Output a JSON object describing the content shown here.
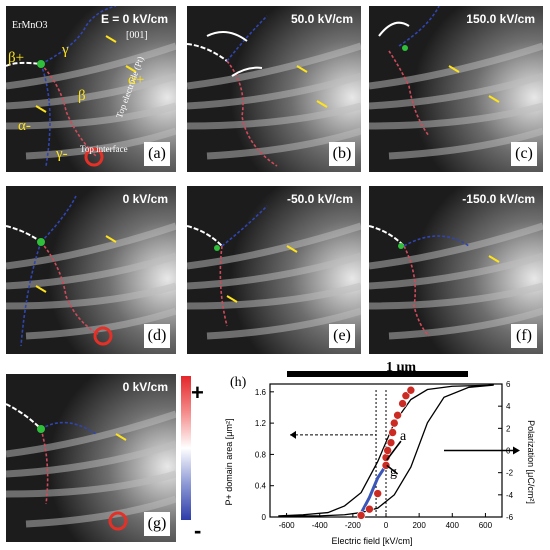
{
  "panels": [
    {
      "id": "a",
      "label": "(a)",
      "field": "E = 0 kV/cm",
      "extra": {
        "material": "ErMnO3",
        "direction": "[001]",
        "electrode": "Top electrode (Pt)",
        "interface": "Top interface",
        "greek": [
          "β+",
          "γ",
          "β",
          "α+",
          "α-",
          "γ-"
        ]
      }
    },
    {
      "id": "b",
      "label": "(b)",
      "field": "50.0 kV/cm"
    },
    {
      "id": "c",
      "label": "(c)",
      "field": "150.0 kV/cm"
    },
    {
      "id": "d",
      "label": "(d)",
      "field": "0 kV/cm"
    },
    {
      "id": "e",
      "label": "(e)",
      "field": "-50.0 kV/cm"
    },
    {
      "id": "f",
      "label": "(f)",
      "field": "-150.0 kV/cm"
    },
    {
      "id": "g",
      "label": "(g)",
      "field": "0 kV/cm"
    }
  ],
  "scale_bar": "1 μm",
  "colorbar": {
    "plus": "+",
    "minus": "-",
    "top_color": "#e4262a",
    "mid_color": "#ffffff",
    "bottom_color": "#2d3ca8"
  },
  "chart_data": {
    "type": "line",
    "panel_label": "(h)",
    "xlabel": "Electric field [kV/cm]",
    "ylabel_left": "P+ domain area [μm²]",
    "ylabel_right": "Polarization [μC/cm²]",
    "x_ticks": [
      -600,
      -400,
      -200,
      0,
      200,
      400,
      600
    ],
    "y_left_ticks": [
      0,
      0.4,
      0.8,
      1.2,
      1.6
    ],
    "y_right_ticks": [
      -6,
      -4,
      -2,
      0,
      2,
      4,
      6
    ],
    "xlim": [
      -700,
      700
    ],
    "ylim_left": [
      0,
      1.7
    ],
    "ylim_right": [
      -6,
      6
    ],
    "series": [
      {
        "name": "hysteresis",
        "color": "#000000",
        "style": "solid",
        "x": [
          -650,
          -500,
          -350,
          -250,
          -150,
          -50,
          50,
          150,
          250,
          400,
          650,
          650,
          500,
          350,
          250,
          150,
          50,
          -50,
          -150,
          -250,
          -400,
          -650
        ],
        "y": [
          -5.9,
          -5.8,
          -5.6,
          -5,
          -3.8,
          -1,
          2.5,
          4.6,
          5.5,
          5.8,
          5.9,
          5.9,
          5.7,
          4.8,
          2.5,
          -1.5,
          -4,
          -5.2,
          -5.6,
          -5.8,
          -5.9,
          -5.9
        ]
      },
      {
        "name": "domain-area-up",
        "color": "#cc2b24",
        "style": "markers",
        "x": [
          -150,
          -100,
          -50,
          0,
          0,
          10,
          30,
          40,
          50,
          70,
          100,
          120,
          150
        ],
        "y": [
          0.02,
          0.1,
          0.3,
          0.66,
          0.76,
          0.85,
          0.95,
          1.08,
          1.2,
          1.3,
          1.45,
          1.55,
          1.62
        ]
      },
      {
        "name": "domain-area-down",
        "color": "#3a56b8",
        "style": "line",
        "x": [
          -150,
          -100,
          -50,
          0
        ],
        "y": [
          0.05,
          0.25,
          0.5,
          0.66
        ]
      }
    ],
    "annotations": [
      {
        "text": "a"
      },
      {
        "text": "g"
      }
    ]
  }
}
